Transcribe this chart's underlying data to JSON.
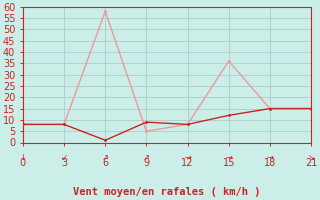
{
  "xlabel": "Vent moyen/en rafales ( km/h )",
  "bg_color": "#cceee8",
  "grid_color": "#aacccc",
  "x_data": [
    0,
    3,
    6,
    9,
    12,
    15,
    18,
    21
  ],
  "y_mean": [
    8,
    8,
    1,
    9,
    8,
    12,
    15,
    15
  ],
  "y_gust": [
    8,
    8,
    58,
    5,
    8,
    36,
    15,
    15
  ],
  "line_color_mean": "#cc2222",
  "line_color_gust": "#ee9999",
  "arrow_chars": [
    "↓",
    "↙",
    "↗",
    "↗",
    "→",
    "→",
    "→",
    "↘"
  ],
  "xlim": [
    0,
    21
  ],
  "ylim": [
    0,
    60
  ],
  "yticks": [
    0,
    5,
    10,
    15,
    20,
    25,
    30,
    35,
    40,
    45,
    50,
    55,
    60
  ],
  "xticks": [
    0,
    3,
    6,
    9,
    12,
    15,
    18,
    21
  ],
  "tick_fontsize": 7,
  "xlabel_fontsize": 7.5
}
